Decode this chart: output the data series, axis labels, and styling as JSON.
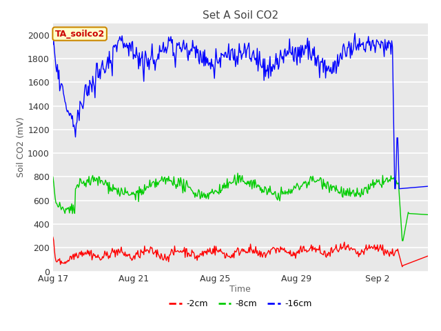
{
  "title": "Set A Soil CO2",
  "xlabel": "Time",
  "ylabel": "Soil CO2 (mV)",
  "ylim": [
    0,
    2100
  ],
  "yticks": [
    0,
    200,
    400,
    600,
    800,
    1000,
    1200,
    1400,
    1600,
    1800,
    2000
  ],
  "fig_bg_color": "#ffffff",
  "plot_bg_color": "#e8e8e8",
  "grid_color": "#ffffff",
  "tag_label": "TA_soilco2",
  "tag_bg": "#ffffcc",
  "tag_border": "#cc8800",
  "tag_text_color": "#cc0000",
  "line_red": "#ff0000",
  "line_green": "#00cc00",
  "line_blue": "#0000ff",
  "legend_labels": [
    "-2cm",
    "-8cm",
    "-16cm"
  ],
  "n_points": 500,
  "xtick_labels": [
    "Aug 17",
    "Aug 21",
    "Aug 25",
    "Aug 29",
    "Sep 2"
  ],
  "xtick_days": [
    0,
    4,
    8,
    12,
    16
  ],
  "total_days": 18.5
}
